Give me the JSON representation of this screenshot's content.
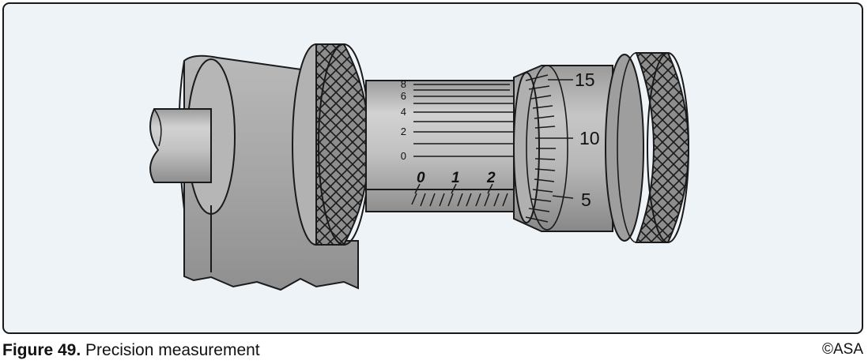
{
  "figure": {
    "caption_label": "Figure 49.",
    "caption_text": "Precision measurement",
    "copyright": "©ASA"
  },
  "micrometer": {
    "sleeve_scale_labels": [
      "8",
      "6",
      "4",
      "2",
      "0"
    ],
    "barrel_numbers": [
      "0",
      "1",
      "2"
    ],
    "thimble_labels": [
      "15",
      "10",
      "5"
    ]
  },
  "colors": {
    "background": "#eef3f8",
    "metal_light": "#c8c8c8",
    "metal_mid": "#a8a8a8",
    "metal_dark": "#8a8a8a",
    "outline": "#1a1a1a"
  }
}
